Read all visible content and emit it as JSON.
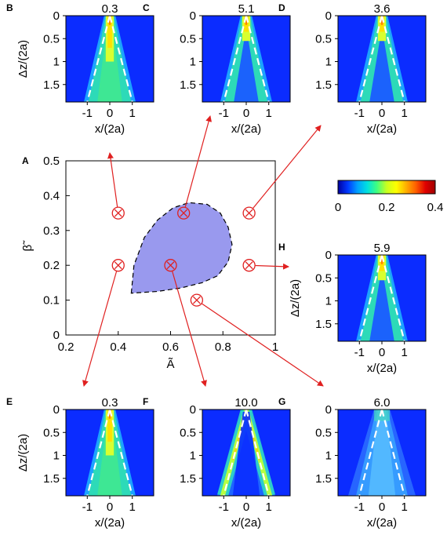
{
  "panels": [
    {
      "id": "B",
      "label": "B",
      "title": "0.3",
      "pattern": "inner-fill",
      "xlabel": "x/(2a)",
      "ylabel": "Δz/(2a)",
      "xticks": [
        "-1",
        "0",
        "1"
      ],
      "yticks": [
        "0",
        "0.5",
        "1",
        "1.5"
      ]
    },
    {
      "id": "C",
      "label": "C",
      "title": "5.1",
      "pattern": "v-core",
      "xlabel": "x/(2a)",
      "ylabel": "",
      "xticks": [
        "-1",
        "0",
        "1"
      ],
      "yticks": [
        "0",
        "0.5",
        "1",
        "1.5"
      ]
    },
    {
      "id": "D",
      "label": "D",
      "title": "3.6",
      "pattern": "v-core",
      "xlabel": "x/(2a)",
      "ylabel": "",
      "xticks": [
        "-1",
        "0",
        "1"
      ],
      "yticks": [
        "0",
        "0.5",
        "1",
        "1.5"
      ]
    },
    {
      "id": "H",
      "label": "H",
      "title": "5.9",
      "pattern": "v-core",
      "xlabel": "x/(2a)",
      "ylabel": "Δz/(2a)",
      "xticks": [
        "-1",
        "0",
        "1"
      ],
      "yticks": [
        "0",
        "0.5",
        "1",
        "1.5"
      ]
    },
    {
      "id": "E",
      "label": "E",
      "title": "0.3",
      "pattern": "inner-fill",
      "xlabel": "x/(2a)",
      "ylabel": "Δz/(2a)",
      "xticks": [
        "-1",
        "0",
        "1"
      ],
      "yticks": [
        "0",
        "0.5",
        "1",
        "1.5"
      ]
    },
    {
      "id": "F",
      "label": "F",
      "title": "10.0",
      "pattern": "v-edges",
      "xlabel": "x/(2a)",
      "ylabel": "",
      "xticks": [
        "-1",
        "0",
        "1"
      ],
      "yticks": [
        "0",
        "0.5",
        "1",
        "1.5"
      ]
    },
    {
      "id": "G",
      "label": "G",
      "title": "6.0",
      "pattern": "diffuse",
      "xlabel": "x/(2a)",
      "ylabel": "",
      "xticks": [
        "-1",
        "0",
        "1"
      ],
      "yticks": [
        "0",
        "0.5",
        "1",
        "1.5"
      ]
    }
  ],
  "colorbar": {
    "ticks": [
      "0",
      "0.2",
      "0.4"
    ],
    "min": 0,
    "max": 0.4,
    "colors": [
      "#0000a0",
      "#0038ff",
      "#00a0ff",
      "#00e0e0",
      "#40ff80",
      "#c8ff20",
      "#ffff00",
      "#ffb000",
      "#ff6000",
      "#e00000",
      "#a00000"
    ]
  },
  "chart_data": {
    "type": "scatter",
    "label": "A",
    "xlabel": "Ã",
    "ylabel": "β̃",
    "xlim": [
      0.2,
      1.0
    ],
    "ylim": [
      0,
      0.5
    ],
    "xticks": [
      "0.2",
      "0.4",
      "0.6",
      "0.8",
      "1"
    ],
    "yticks": [
      "0",
      "0.1",
      "0.2",
      "0.3",
      "0.4",
      "0.5"
    ],
    "region_color": "#9999ee",
    "points": [
      {
        "x": 0.4,
        "y": 0.35,
        "target": "B"
      },
      {
        "x": 0.65,
        "y": 0.35,
        "target": "C"
      },
      {
        "x": 0.9,
        "y": 0.35,
        "target": "D"
      },
      {
        "x": 0.4,
        "y": 0.2,
        "target": "E"
      },
      {
        "x": 0.6,
        "y": 0.2,
        "target": "F"
      },
      {
        "x": 0.7,
        "y": 0.1,
        "target": "G"
      },
      {
        "x": 0.9,
        "y": 0.2,
        "target": "H"
      }
    ]
  }
}
